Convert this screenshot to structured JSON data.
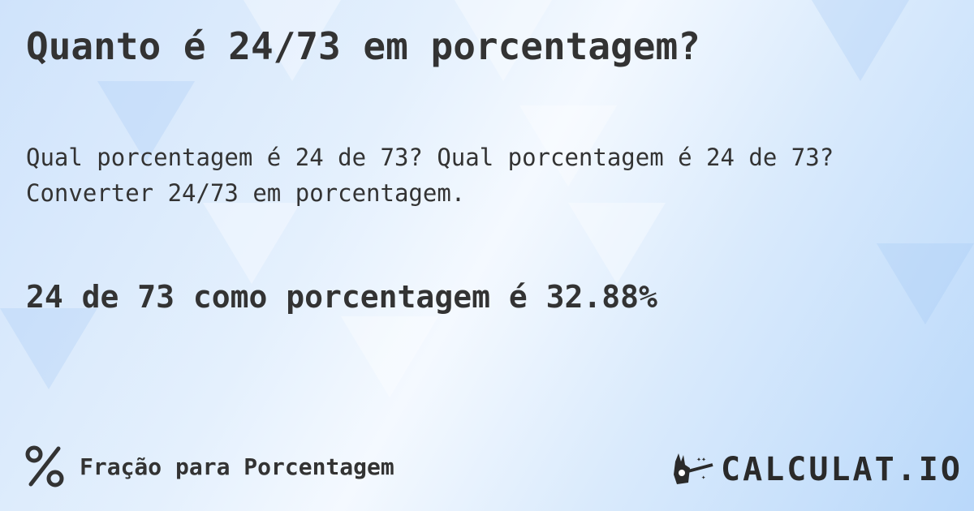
{
  "title": "Quanto é 24/73 em porcentagem?",
  "description": [
    "Qual porcentagem é 24 de 73? Qual porcentagem é 24 de 73?",
    "Converter 24/73 em porcentagem."
  ],
  "result": "24 de 73 como porcentagem é 32.88%",
  "footer": {
    "icon": "percent-icon",
    "label": "Fração para Porcentagem"
  },
  "logo": {
    "text": "CALCULAT.IO",
    "icon": "magic-hand-icon"
  },
  "colors": {
    "text": "#333333",
    "background": "#d6e8fc"
  }
}
